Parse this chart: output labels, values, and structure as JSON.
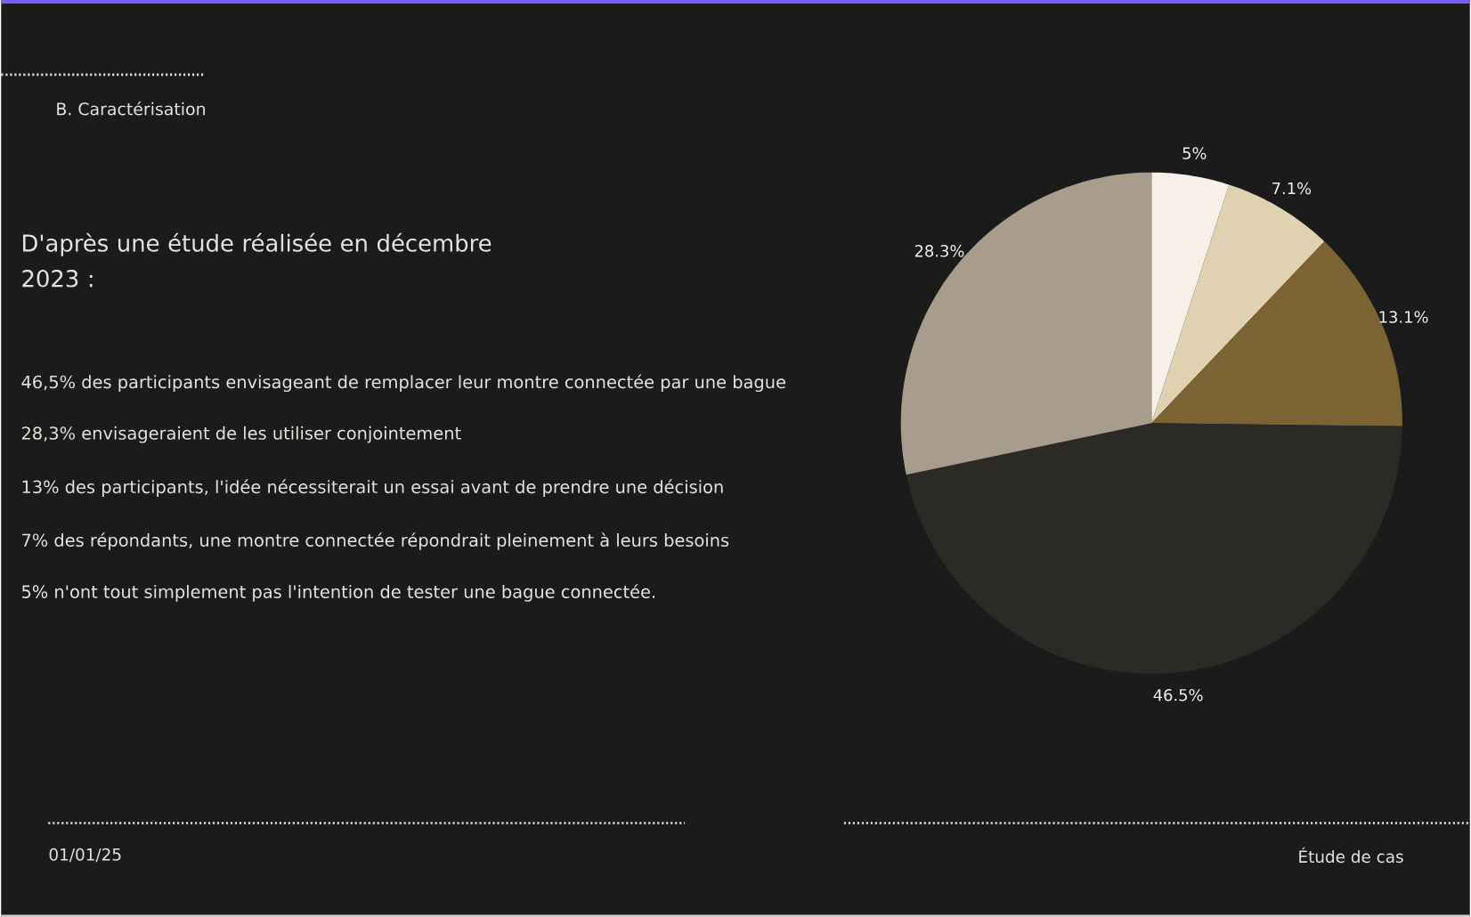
{
  "chart_data": {
    "type": "pie",
    "title": "D'après une étude réalisée en décembre 2023 :",
    "categories": [
      null,
      null,
      null,
      null,
      null
    ],
    "values": [
      5,
      7.1,
      13.1,
      46.5,
      28.3
    ],
    "colors": [
      "#f7f0e8",
      "#e0d1b0",
      "#7b6333",
      "#2c2a27",
      "#a89d8c"
    ],
    "value_labels": [
      "5%",
      "7.1%",
      "13.1%",
      "46.5%",
      "28.3%"
    ],
    "annotations": [
      "B. Caractérisation",
      "46,5% des participants envisageant de remplacer leur montre connectée par une bague",
      "28,3% envisageraient de les utiliser conjointement",
      "13% des participants, l'idée nécessiterait un essai avant de prendre une décision",
      "7% des répondants, une montre connectée répondrait pleinement à leurs besoins",
      "5% n'ont tout simplement pas l'intention de tester une bague connectée.",
      "01/01/25",
      "Étude de cas"
    ]
  }
}
